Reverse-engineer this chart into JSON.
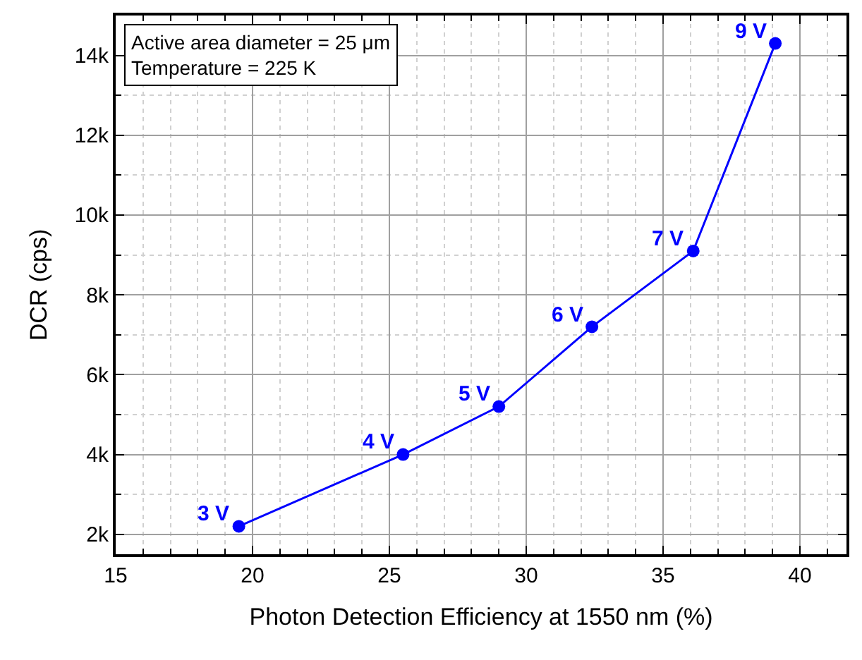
{
  "chart_data": {
    "type": "line",
    "xlabel": "Photon Detection Efficiency at 1550 nm (%)",
    "ylabel": "DCR (cps)",
    "x": [
      19.5,
      25.5,
      29.0,
      32.4,
      36.1,
      39.1
    ],
    "series": [
      {
        "color": "#0000ff",
        "values": [
          2200,
          4000,
          5200,
          7200,
          9100,
          14300
        ]
      }
    ],
    "xlim": [
      15,
      41.7
    ],
    "xticks": [
      15,
      20,
      25,
      30,
      35,
      40
    ],
    "ylim": [
      1500,
      15000
    ],
    "yticks": [
      {
        "value": 2000,
        "label": "2k"
      },
      {
        "value": 4000,
        "label": "4k"
      },
      {
        "value": 6000,
        "label": "6k"
      },
      {
        "value": 8000,
        "label": "8k"
      },
      {
        "value": 10000,
        "label": "10k"
      },
      {
        "value": 12000,
        "label": "12k"
      },
      {
        "value": 14000,
        "label": "14k"
      }
    ],
    "annotations": [
      {
        "text": "3 V",
        "x": 19.5,
        "y": 2200
      },
      {
        "text": "4 V",
        "x": 25.5,
        "y": 4000
      },
      {
        "text": "5 V",
        "x": 29.0,
        "y": 5200
      },
      {
        "text": "6 V",
        "x": 32.4,
        "y": 7200
      },
      {
        "text": "7 V",
        "x": 36.1,
        "y": 9100
      },
      {
        "text": "9 V",
        "x": 39.1,
        "y": 14300
      },
      "Active area diameter = 25 μm",
      "Temperature = 225 K"
    ],
    "grid": true,
    "marker": "circle",
    "line_style": "solid",
    "legend": false
  }
}
